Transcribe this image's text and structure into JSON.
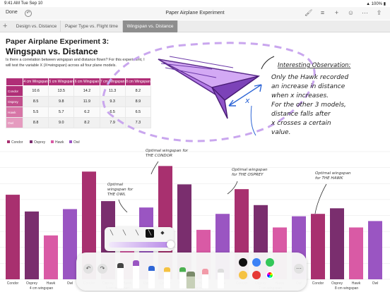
{
  "status": {
    "time": "9:41 AM",
    "date": "Tue Sep 10",
    "battery": "100%"
  },
  "toolbar": {
    "done_label": "Done",
    "title": "Paper Airplane Experiment"
  },
  "tabs": [
    {
      "label": "Design vs. Distance"
    },
    {
      "label": "Paper Type vs. Flight time"
    },
    {
      "label": "Wingspan vs. Distance"
    }
  ],
  "doc": {
    "heading": "Paper Airplane Experiment 3:",
    "subheading": "Wingspan vs. Distance",
    "intro": "Is there a correlation between wingspan and distance flown? For this experiment, I will test the variable X (X=wingspan) across all four plane models."
  },
  "table": {
    "headers": [
      "",
      "4 cm Wingspan",
      "5 cm Wingspan",
      "6 cm Wingspan",
      "7 cm Wingspan",
      "8 cm Wingspan"
    ],
    "rows": [
      {
        "label": "Condor",
        "color": "#b02e77",
        "values": [
          "10.6",
          "13.5",
          "14.2",
          "11.3",
          "8.2"
        ]
      },
      {
        "label": "Osprey",
        "color": "#c24f8c",
        "values": [
          "8.5",
          "9.8",
          "11.9",
          "9.3",
          "8.9"
        ]
      },
      {
        "label": "Hawk",
        "color": "#d775a6",
        "values": [
          "5.5",
          "5.7",
          "6.2",
          "6.5",
          "6.5"
        ]
      },
      {
        "label": "Owl",
        "color": "#e59bbf",
        "values": [
          "8.8",
          "9.0",
          "8.2",
          "7.9",
          "7.3"
        ]
      }
    ]
  },
  "annotations": {
    "observation_title": "Interesting Observation:",
    "observation_body": [
      "Only the Hawk recorded",
      "an increase in distance",
      "when x increases.",
      "For the other 3 models,",
      "distance falls after",
      "x crosses a certain",
      "value."
    ],
    "x_label": "x",
    "condor_note": [
      "Optimal wingspan for",
      "THE CONDOR"
    ],
    "owl_note": [
      "Optimal",
      "wingspan for",
      "THE OWL"
    ],
    "osprey_note": [
      "Optimal wingspan",
      "for THE OSPREY"
    ],
    "hawk_note": [
      "Optimal wingspan",
      "for THE HAWK"
    ]
  },
  "chart_data": {
    "type": "bar",
    "legend_position": "top-left",
    "series": [
      {
        "name": "Condor",
        "color": "#a8306f"
      },
      {
        "name": "Osprey",
        "color": "#7a2e6e"
      },
      {
        "name": "Hawk",
        "color": "#d95aa5"
      },
      {
        "name": "Owl",
        "color": "#9a55c2"
      }
    ],
    "categories": [
      "4 cm wingspan",
      "5 cm wingspan",
      "6 cm wingspan",
      "7 cm wingspan",
      "8 cm wingspan"
    ],
    "tick_labels": [
      "Condor",
      "Osprey",
      "Hawk",
      "Owl"
    ],
    "values": {
      "Condor": [
        10.6,
        13.5,
        14.2,
        11.3,
        8.2
      ],
      "Osprey": [
        8.5,
        9.8,
        11.9,
        9.3,
        8.9
      ],
      "Hawk": [
        5.5,
        5.7,
        6.2,
        6.5,
        6.5
      ],
      "Owl": [
        8.8,
        9.0,
        8.2,
        7.9,
        7.3
      ]
    },
    "ylim": [
      0,
      16
    ],
    "grid": true
  },
  "pen_dock": {
    "tools": [
      "pen",
      "marker",
      "pencil",
      "highlighter",
      "crayon",
      "fill",
      "eraser",
      "lasso"
    ],
    "colors": [
      "#111111",
      "#3b82f6",
      "#34c759",
      "#f5c242",
      "#e53935",
      "#9a55c2"
    ]
  },
  "stroke_palette": {
    "widths": [
      "thin",
      "thin-medium",
      "medium",
      "thick-selected",
      "thick"
    ]
  }
}
